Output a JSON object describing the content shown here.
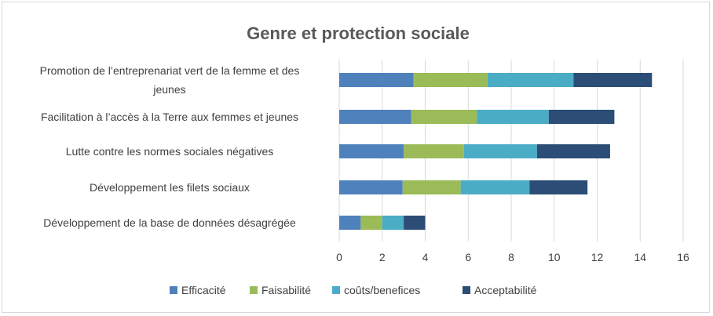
{
  "chart_data": {
    "type": "bar",
    "orientation": "horizontal",
    "stacked": true,
    "title": "Genre et protection sociale",
    "categories": [
      [
        "Promotion de l’entreprenariat vert de la femme et des",
        "jeunes"
      ],
      [
        "Facilitation à l’accès à la Terre aux femmes et jeunes"
      ],
      [
        "Lutte contre les normes sociales négatives"
      ],
      [
        "Développement les filets sociaux"
      ],
      [
        "Développement de la base de données désagrégée"
      ]
    ],
    "series": [
      {
        "name": "Efficacité",
        "color": "#4f81bd",
        "values": [
          3.45,
          3.35,
          3.0,
          2.95,
          1.0
        ]
      },
      {
        "name": "Faisabilité",
        "color": "#9bbb59",
        "values": [
          3.45,
          3.05,
          2.8,
          2.7,
          1.0
        ]
      },
      {
        "name": "coûts/benefices",
        "color": "#4bacc6",
        "values": [
          4.0,
          3.35,
          3.4,
          3.2,
          1.0
        ]
      },
      {
        "name": "Acceptabilité",
        "color": "#2c4d75",
        "values": [
          3.65,
          3.05,
          3.4,
          2.7,
          1.0
        ]
      }
    ],
    "xlim": [
      0,
      16
    ],
    "xticks": [
      0,
      2,
      4,
      6,
      8,
      10,
      12,
      14,
      16
    ],
    "grid": true,
    "legend": "bottom"
  }
}
